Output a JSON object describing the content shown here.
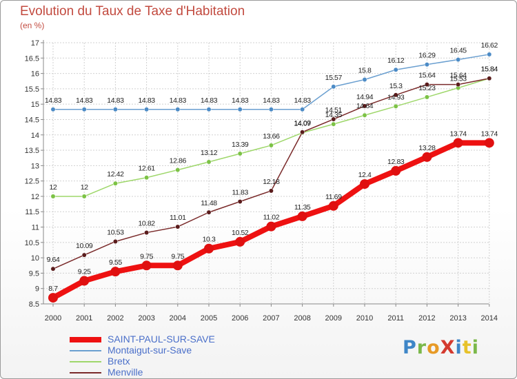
{
  "chart_data": {
    "type": "line",
    "title": "Evolution du Taux de Taxe d'Habitation",
    "subtitle": "(en %)",
    "xlabel": "",
    "ylabel": "",
    "ylim": [
      8.5,
      17
    ],
    "ytick_step": 0.5,
    "yticks": [
      "8.5",
      "9",
      "9.5",
      "10",
      "10.5",
      "11",
      "11.5",
      "12",
      "12.5",
      "13",
      "13.5",
      "14",
      "14.5",
      "15",
      "15.5",
      "16",
      "16.5",
      "17"
    ],
    "x": [
      "2000",
      "2001",
      "2002",
      "2003",
      "2004",
      "2005",
      "2006",
      "2007",
      "2008",
      "2009",
      "2010",
      "2011",
      "2012",
      "2013",
      "2014"
    ],
    "grid": true,
    "legend_position": "bottom-left",
    "series": [
      {
        "name": "Montaigut-sur-Save",
        "color": "#6a9fd0",
        "point_color": "#4c8bc6",
        "line_width": 1.5,
        "values": [
          14.83,
          14.83,
          14.83,
          14.83,
          14.83,
          14.83,
          14.83,
          14.83,
          14.83,
          15.57,
          15.8,
          16.12,
          16.29,
          16.45,
          16.62
        ],
        "labels": [
          "14.83",
          "14.83",
          "14.83",
          "14.83",
          "14.83",
          "14.83",
          "14.83",
          "14.83",
          "14.83",
          "15.57",
          "15.8",
          "16.12",
          "16.29",
          "16.45",
          "16.62"
        ]
      },
      {
        "name": "Bretx",
        "color": "#9ed76a",
        "point_color": "#7cc245",
        "line_width": 1.5,
        "values": [
          12,
          12,
          12.42,
          12.61,
          12.86,
          13.12,
          13.39,
          13.66,
          14.07,
          14.35,
          14.64,
          14.93,
          15.23,
          15.53,
          15.84
        ],
        "labels": [
          "12",
          "12",
          "12.42",
          "12.61",
          "12.86",
          "13.12",
          "13.39",
          "13.66",
          "14.07",
          "14.35",
          "14.64",
          "14.93",
          "15.23",
          "15.53",
          "15.84"
        ]
      },
      {
        "name": "Menville",
        "color": "#7a2a2a",
        "point_color": "#5a1c1c",
        "line_width": 1.5,
        "values": [
          9.64,
          10.09,
          10.53,
          10.82,
          11.01,
          11.48,
          11.83,
          12.18,
          14.09,
          14.51,
          14.94,
          15.3,
          15.64,
          15.64,
          15.84
        ],
        "labels": [
          "9.64",
          "10.09",
          "10.53",
          "10.82",
          "11.01",
          "11.48",
          "11.83",
          "12.18",
          "14.09",
          "14.51",
          "14.94",
          "15.3",
          "15.64",
          "15.64",
          "15.84"
        ]
      },
      {
        "name": "SAINT-PAUL-SUR-SAVE",
        "color": "#ee1111",
        "point_color": "#e01010",
        "line_width": 8,
        "values": [
          8.7,
          9.25,
          9.55,
          9.75,
          9.75,
          10.3,
          10.52,
          11.02,
          11.35,
          11.69,
          12.4,
          12.83,
          13.28,
          13.74,
          13.74
        ],
        "labels": [
          "8.7",
          "9.25",
          "9.55",
          "9.75",
          "9.75",
          "10.3",
          "10.52",
          "11.02",
          "11.35",
          "11.69",
          "12.4",
          "12.83",
          "13.28",
          "13.74",
          "13.74"
        ]
      }
    ],
    "legend": [
      {
        "name": "SAINT-PAUL-SUR-SAVE",
        "color": "#ee1111",
        "thickness": 8
      },
      {
        "name": "Montaigut-sur-Save",
        "color": "#6a9fd0",
        "thickness": 2
      },
      {
        "name": "Bretx",
        "color": "#9ed76a",
        "thickness": 2
      },
      {
        "name": "Menville",
        "color": "#7a2a2a",
        "thickness": 2
      }
    ]
  },
  "logo": {
    "text": "ProXiti",
    "parts": [
      "P",
      "r",
      "o",
      "X",
      "i",
      "t",
      "i"
    ]
  }
}
